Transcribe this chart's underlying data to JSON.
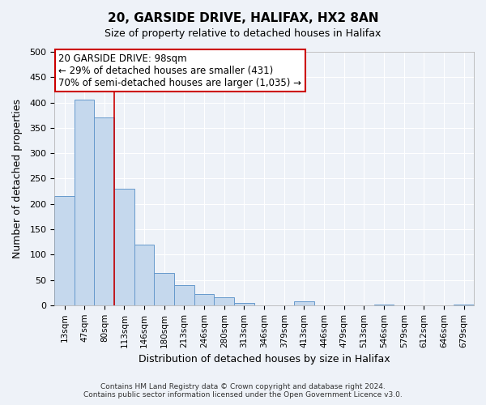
{
  "title": "20, GARSIDE DRIVE, HALIFAX, HX2 8AN",
  "subtitle": "Size of property relative to detached houses in Halifax",
  "xlabel": "Distribution of detached houses by size in Halifax",
  "ylabel": "Number of detached properties",
  "bin_labels": [
    "13sqm",
    "47sqm",
    "80sqm",
    "113sqm",
    "146sqm",
    "180sqm",
    "213sqm",
    "246sqm",
    "280sqm",
    "313sqm",
    "346sqm",
    "379sqm",
    "413sqm",
    "446sqm",
    "479sqm",
    "513sqm",
    "546sqm",
    "579sqm",
    "612sqm",
    "646sqm",
    "679sqm"
  ],
  "bar_values": [
    215,
    405,
    370,
    230,
    120,
    63,
    40,
    22,
    15,
    5,
    0,
    0,
    8,
    0,
    0,
    0,
    2,
    0,
    0,
    0,
    2
  ],
  "bar_color": "#c5d8ed",
  "bar_edge_color": "#6699cc",
  "vline_x_index": 2.5,
  "vline_color": "#cc0000",
  "annotation_text": "20 GARSIDE DRIVE: 98sqm\n← 29% of detached houses are smaller (431)\n70% of semi-detached houses are larger (1,035) →",
  "annotation_box_color": "#ffffff",
  "annotation_box_edge_color": "#cc0000",
  "ylim": [
    0,
    500
  ],
  "yticks": [
    0,
    50,
    100,
    150,
    200,
    250,
    300,
    350,
    400,
    450,
    500
  ],
  "footer_line1": "Contains HM Land Registry data © Crown copyright and database right 2024.",
  "footer_line2": "Contains public sector information licensed under the Open Government Licence v3.0.",
  "background_color": "#eef2f8",
  "grid_color": "#ffffff",
  "figsize": [
    6.0,
    5.0
  ],
  "dpi": 100
}
